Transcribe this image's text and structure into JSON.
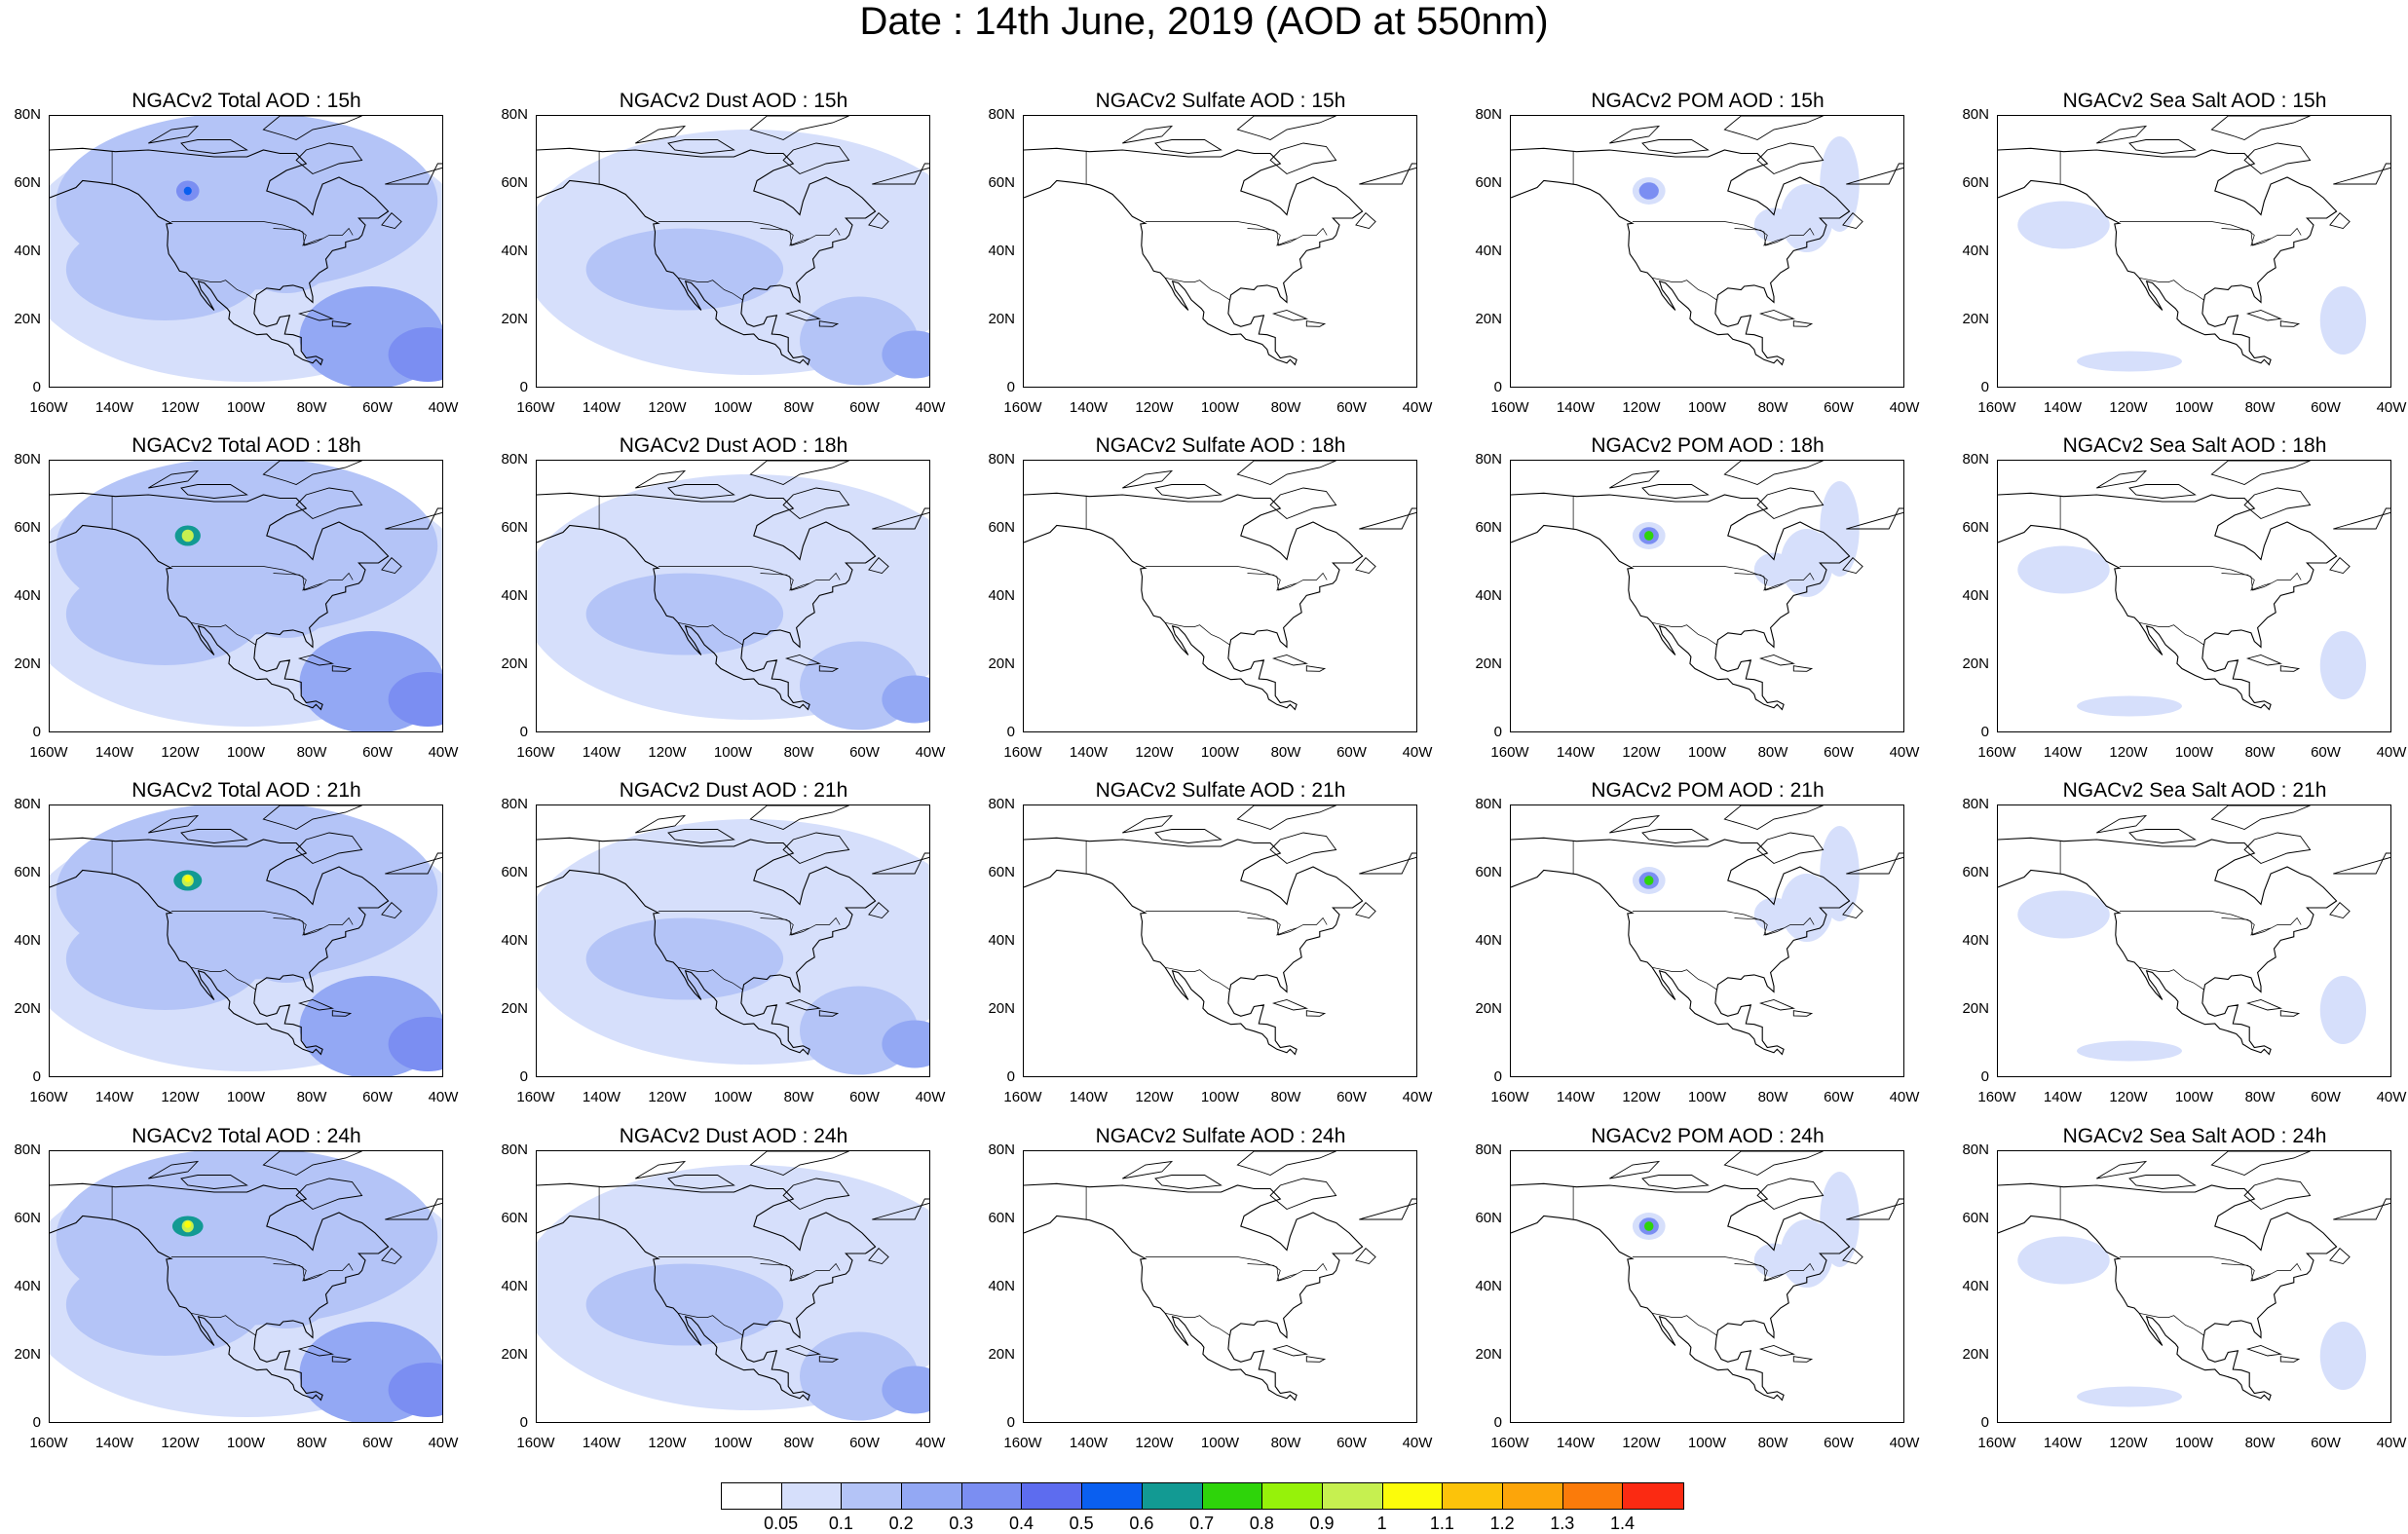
{
  "title": "Date : 14th June, 2019 (AOD at 550nm)",
  "x_ticks": [
    "160W",
    "140W",
    "120W",
    "100W",
    "80W",
    "60W",
    "40W"
  ],
  "y_ticks": [
    "80N",
    "60N",
    "40N",
    "20N",
    "0"
  ],
  "columns": [
    {
      "key": "total",
      "field": "Total AOD"
    },
    {
      "key": "dust",
      "field": "Dust AOD"
    },
    {
      "key": "sulfate",
      "field": "Sulfate AOD"
    },
    {
      "key": "pom",
      "field": "POM AOD"
    },
    {
      "key": "seasalt",
      "field": "Sea Salt AOD"
    }
  ],
  "panels": [
    [
      "NGACv2 Total AOD : 15h",
      "NGACv2 Dust AOD : 15h",
      "NGACv2 Sulfate AOD : 15h",
      "NGACv2 POM AOD : 15h",
      "NGACv2 Sea Salt AOD : 15h"
    ],
    [
      "NGACv2 Total AOD : 18h",
      "NGACv2 Dust AOD : 18h",
      "NGACv2 Sulfate AOD : 18h",
      "NGACv2 POM AOD : 18h",
      "NGACv2 Sea Salt AOD : 18h"
    ],
    [
      "NGACv2 Total AOD : 21h",
      "NGACv2 Dust AOD : 21h",
      "NGACv2 Sulfate AOD : 21h",
      "NGACv2 POM AOD : 21h",
      "NGACv2 Sea Salt AOD : 21h"
    ],
    [
      "NGACv2 Total AOD : 24h",
      "NGACv2 Dust AOD : 24h",
      "NGACv2 Sulfate AOD : 24h",
      "NGACv2 POM AOD : 24h",
      "NGACv2 Sea Salt  AOD : 24h"
    ]
  ],
  "colorbar": {
    "colors": [
      "#ffffff",
      "#d6dffb",
      "#b4c4f7",
      "#93a8f4",
      "#7b8ef2",
      "#5d6cef",
      "#0a5ff0",
      "#129a93",
      "#2ed40a",
      "#96f20a",
      "#c6f050",
      "#fcfc0a",
      "#fcc30a",
      "#fca50a",
      "#fb7b0a",
      "#fb2a12"
    ],
    "labels": [
      "0.05",
      "0.1",
      "0.2",
      "0.3",
      "0.4",
      "0.5",
      "0.6",
      "0.7",
      "0.8",
      "0.9",
      "1",
      "1.1",
      "1.2",
      "1.3",
      "1.4"
    ]
  }
}
